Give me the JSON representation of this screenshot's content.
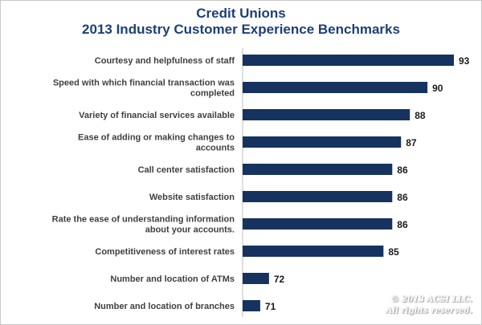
{
  "header": {
    "title_line1": "Credit Unions",
    "title_line2": "2013 Industry Customer Experience Benchmarks"
  },
  "watermark": {
    "line1": "© 2013 ACSI LLC.",
    "line2": "All rights reserved."
  },
  "colors": {
    "bar": "#16325f",
    "title": "#1c3f78",
    "label": "#404040",
    "value": "#1a1a1a"
  },
  "chart_data": {
    "type": "bar",
    "orientation": "horizontal",
    "title": "Credit Unions 2013 Industry Customer Experience Benchmarks",
    "categories": [
      [
        "Courtesy and helpfulness of staff"
      ],
      [
        "Speed with which financial transaction was",
        "completed"
      ],
      [
        "Variety of financial services available"
      ],
      [
        "Ease of adding or making changes to",
        "accounts"
      ],
      [
        "Call center satisfaction"
      ],
      [
        "Website satisfaction"
      ],
      [
        "Rate the ease of understanding information",
        "about your accounts."
      ],
      [
        "Competitiveness of interest rates"
      ],
      [
        "Number and location of ATMs"
      ],
      [
        "Number and location of branches"
      ]
    ],
    "values": [
      93,
      90,
      88,
      87,
      86,
      86,
      86,
      85,
      72,
      71
    ],
    "data_labels": [
      "93",
      "90",
      "88",
      "87",
      "86",
      "86",
      "86",
      "85",
      "72",
      "71"
    ],
    "xlim": [
      69,
      93
    ],
    "grid": false,
    "legend": "none"
  }
}
